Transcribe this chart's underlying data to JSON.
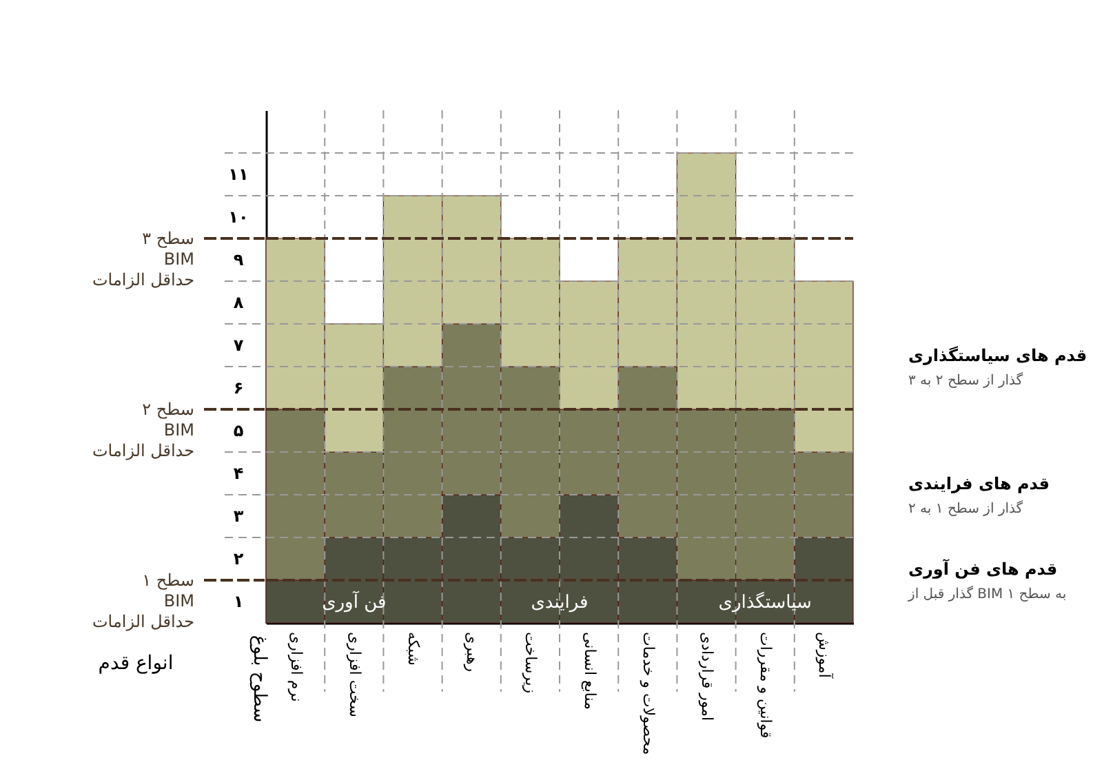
{
  "chart_data": {
    "type": "bar",
    "stacked": true,
    "xlabel": "انواع قدم",
    "ylabel": "سطوح بلوغ",
    "categories": [
      "نرم افزاری",
      "سخت افزاری",
      "شبکه",
      "رهبری",
      "زیرساخت",
      "منابع انسانی",
      "محصولات و خدمات",
      "امور قراردادی",
      "قوانین و مقررات",
      "آموزش"
    ],
    "series": [
      {
        "name": "قدم های فن آوری",
        "color": "#4f5140",
        "values": [
          1,
          2,
          2,
          3,
          2,
          3,
          2,
          1,
          1,
          2
        ]
      },
      {
        "name": "قدم های فرایندی",
        "color": "#7b7d5b",
        "values": [
          4,
          2,
          4,
          4,
          4,
          2,
          4,
          4,
          4,
          2
        ]
      },
      {
        "name": "قدم های سیاستگذاری",
        "color": "#c6c89a",
        "values": [
          4,
          3,
          4,
          3,
          3,
          3,
          3,
          6,
          4,
          4
        ]
      }
    ],
    "ylim": [
      0,
      12
    ],
    "yticks": [
      {
        "value": 0.5,
        "label": "۱"
      },
      {
        "value": 1.5,
        "label": "۲"
      },
      {
        "value": 2.5,
        "label": "۳"
      },
      {
        "value": 3.5,
        "label": "۴"
      },
      {
        "value": 4.5,
        "label": "۵"
      },
      {
        "value": 5.5,
        "label": "۶"
      },
      {
        "value": 6.5,
        "label": "۷"
      },
      {
        "value": 7.5,
        "label": "۸"
      },
      {
        "value": 8.5,
        "label": "۹"
      },
      {
        "value": 9.5,
        "label": "۱۰"
      },
      {
        "value": 10.5,
        "label": "۱۱"
      },
      {
        "value": 1,
        "label": null
      },
      {
        "value": 2,
        "label": null
      },
      {
        "value": 3,
        "label": null
      },
      {
        "value": 4,
        "label": null
      },
      {
        "value": 5,
        "label": null
      },
      {
        "value": 6,
        "label": null
      },
      {
        "value": 7,
        "label": null
      },
      {
        "value": 8,
        "label": null
      },
      {
        "value": 9,
        "label": null
      },
      {
        "value": 10,
        "label": null
      },
      {
        "value": 11,
        "label": null
      }
    ],
    "grid": true,
    "ref_lines": [
      {
        "axis": "y",
        "value": 9,
        "label": "سطح ۳\nBIM\nحداقل الزامات",
        "color": "#4a3020",
        "line_style": "dashed"
      },
      {
        "axis": "y",
        "value": 5,
        "label": "سطح ۲\nBIM\nحداقل الزامات",
        "color": "#4a3020",
        "line_style": "dashed"
      },
      {
        "axis": "y",
        "value": 1,
        "label": "سطح ۱\nBIM\nحداقل الزامات",
        "color": "#4a3020",
        "line_style": "dashed"
      }
    ],
    "annotations": [
      "گذار قبل از BIM به سطح ۱",
      "گذار از سطح ۱ به ۲",
      "گذار از سطح ۲ به ۳",
      "فن آوری",
      "فرایندی",
      "سیاستگذاری"
    ]
  }
}
